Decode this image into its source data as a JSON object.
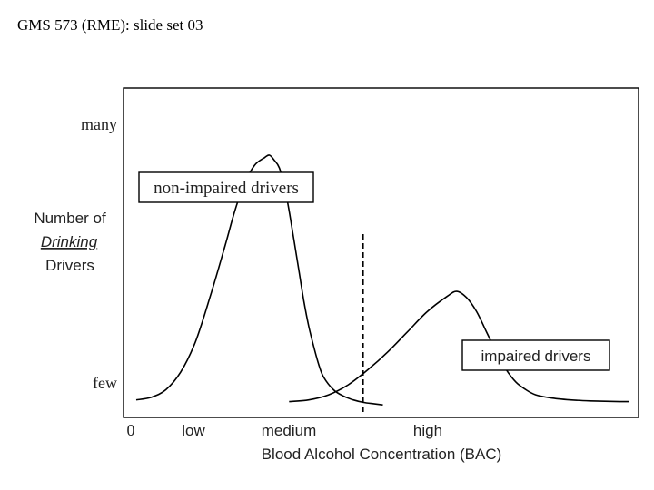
{
  "header": {
    "title": "GMS 573 (RME): slide set 03"
  },
  "chart_data": {
    "type": "line",
    "title": "",
    "xlabel": "Blood Alcohol Concentration (BAC)",
    "ylabel_lines": [
      "Number of",
      "Drinking",
      "Drivers"
    ],
    "xticks": [
      "0",
      "low",
      "medium",
      "high"
    ],
    "yticks": [
      "few",
      "many"
    ],
    "xlim": [
      0,
      100
    ],
    "ylim": [
      0,
      100
    ],
    "threshold_x": 46,
    "series": [
      {
        "name": "non-impaired drivers",
        "x": [
          0,
          3,
          6,
          9,
          12,
          15,
          18,
          20,
          22,
          24,
          26,
          27,
          28,
          29,
          30,
          31,
          32,
          33,
          34,
          35,
          36,
          37,
          38,
          40,
          42,
          44,
          46,
          48,
          50
        ],
        "y": [
          3,
          4,
          7,
          14,
          26,
          44,
          64,
          78,
          89,
          96,
          99,
          100,
          98,
          95,
          88,
          78,
          66,
          54,
          42,
          32,
          24,
          17,
          12,
          7,
          4.5,
          3,
          2,
          1.5,
          1
        ]
      },
      {
        "name": "impaired drivers",
        "x": [
          31,
          35,
          39,
          43,
          47,
          51,
          55,
          59,
          63,
          65,
          67,
          69,
          71,
          73,
          75,
          77,
          79,
          81,
          84,
          88,
          92,
          96,
          100
        ],
        "y": [
          2.3,
          3,
          5,
          9,
          15,
          22,
          30,
          38,
          44,
          46,
          43.5,
          38,
          30,
          22,
          15,
          10,
          7,
          5,
          3.8,
          3,
          2.6,
          2.4,
          2.3
        ]
      }
    ]
  }
}
